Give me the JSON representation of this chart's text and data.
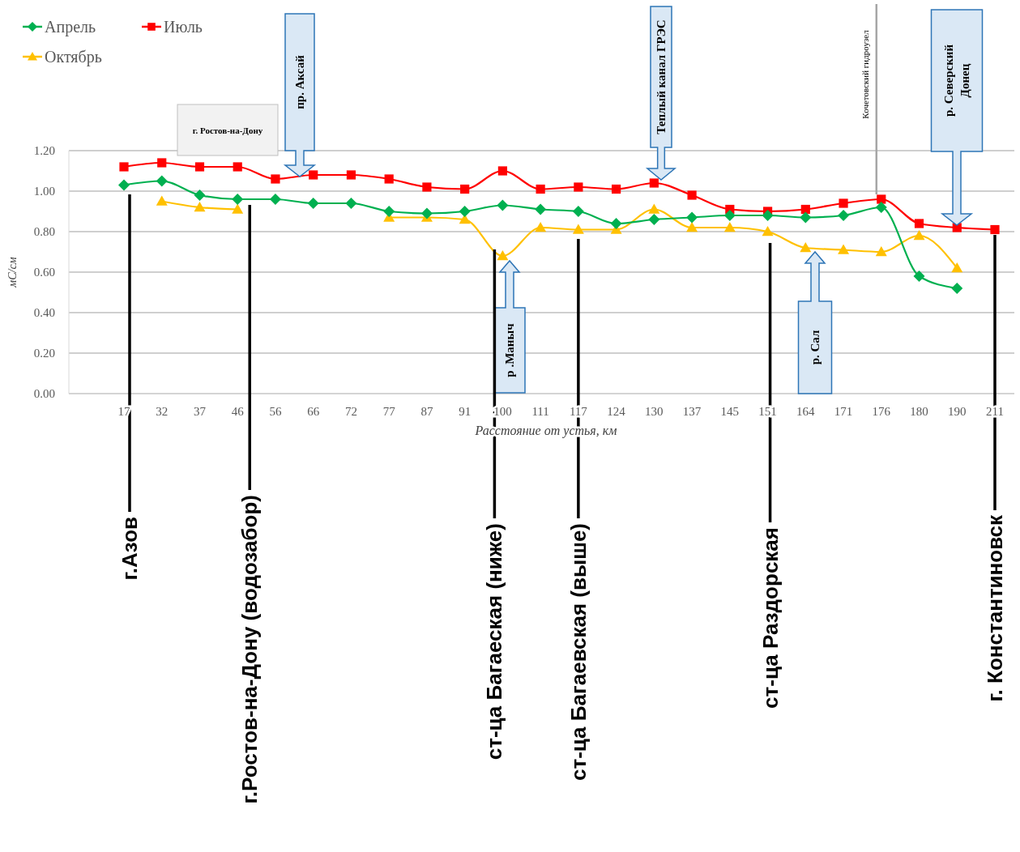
{
  "chart_data": {
    "type": "line",
    "xlabel": "Расстояние от устья, км",
    "ylabel": "мС/см",
    "categories": [
      "17",
      "32",
      "37",
      "46",
      "56",
      "66",
      "72",
      "77",
      "87",
      "91",
      "100",
      "111",
      "117",
      "124",
      "130",
      "137",
      "145",
      "151",
      "164",
      "171",
      "176",
      "180",
      "190",
      "211"
    ],
    "series": [
      {
        "name": "Апрель",
        "color": "#00b050",
        "marker": "diamond",
        "values": [
          1.03,
          1.05,
          0.98,
          0.96,
          0.96,
          0.94,
          0.94,
          0.9,
          0.89,
          0.9,
          0.93,
          0.91,
          0.9,
          0.84,
          0.86,
          0.87,
          0.88,
          0.88,
          0.87,
          0.88,
          0.92,
          0.58,
          0.52,
          null
        ]
      },
      {
        "name": "Июль",
        "color": "#ff0000",
        "marker": "square",
        "values": [
          1.12,
          1.14,
          1.12,
          1.12,
          1.06,
          1.08,
          1.08,
          1.06,
          1.02,
          1.01,
          1.1,
          1.01,
          1.02,
          1.01,
          1.04,
          0.98,
          0.91,
          0.9,
          0.91,
          0.94,
          0.96,
          0.84,
          0.82,
          0.81
        ]
      },
      {
        "name": "Октябрь",
        "color": "#ffc000",
        "marker": "triangle",
        "values": [
          null,
          0.95,
          0.92,
          0.91,
          null,
          null,
          null,
          0.87,
          0.87,
          0.86,
          0.68,
          0.82,
          0.81,
          0.81,
          0.91,
          0.82,
          0.82,
          0.8,
          0.72,
          0.71,
          0.7,
          0.78,
          0.62,
          null
        ]
      }
    ],
    "ylim": [
      0,
      1.2
    ],
    "yticks": [
      {
        "value": 0,
        "label": "0.00"
      },
      {
        "value": 0.2,
        "label": "0.20"
      },
      {
        "value": 0.4,
        "label": "0.40"
      },
      {
        "value": 0.6,
        "label": "0.60"
      },
      {
        "value": 0.8,
        "label": "0.80"
      },
      {
        "value": 1,
        "label": "1.00"
      },
      {
        "value": 1.2,
        "label": "1.20"
      }
    ],
    "grid": "y",
    "legend": "top left",
    "line_style": "solid",
    "ref_lines": [
      {
        "axis": "x",
        "value": "176",
        "label": "Кочетовский гидроузел",
        "color": "#a6a6a6"
      },
      {
        "axis": "x",
        "value": "17",
        "label": "г.Азов",
        "color": "#000000"
      },
      {
        "axis": "x",
        "value": "46",
        "label": "г.Ростов-на-Дону (водозабор)",
        "color": "#000000"
      },
      {
        "axis": "x",
        "value": "100",
        "label": "ст-ца Багаеская (ниже)",
        "color": "#000000"
      },
      {
        "axis": "x",
        "value": "117",
        "label": "ст-ца Багаевская (выше)",
        "color": "#000000"
      },
      {
        "axis": "x",
        "value": "151",
        "label": "ст-ца Раздорская",
        "color": "#000000"
      },
      {
        "axis": "x",
        "value": "211",
        "label": "г. Константиновск",
        "color": "#000000"
      }
    ],
    "annotations": [
      "г. Ростов-на-Дону",
      "пр. Аксай",
      "Теплый канал ГРЭС",
      "р. Северский Донец",
      "р .Маныч",
      "р. Сал"
    ]
  }
}
